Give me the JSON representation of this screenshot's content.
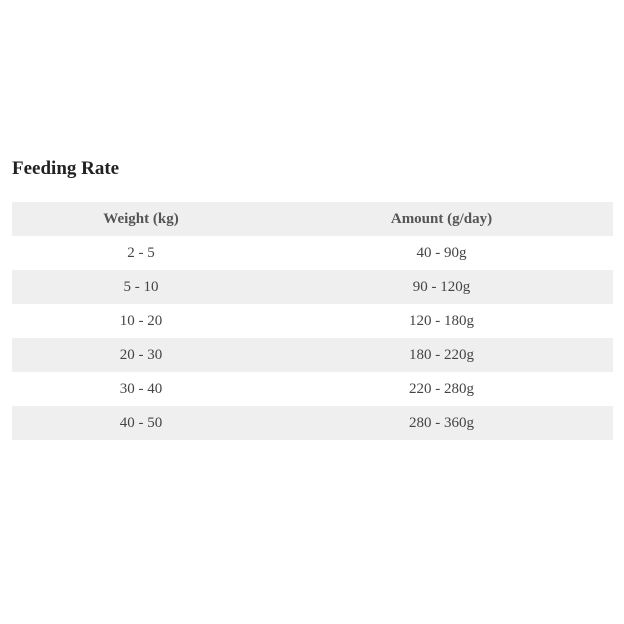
{
  "title": "Feeding Rate",
  "table": {
    "headers": [
      "Weight (kg)",
      "Amount (g/day)"
    ],
    "rows": [
      [
        "2 - 5",
        "40 - 90g"
      ],
      [
        "5 - 10",
        "90 - 120g"
      ],
      [
        "10 - 20",
        "120 - 180g"
      ],
      [
        "20 - 30",
        "180 - 220g"
      ],
      [
        "30 - 40",
        "220 - 280g"
      ],
      [
        "40 - 50",
        "280 - 360g"
      ]
    ]
  },
  "colors": {
    "stripe": "#efefef",
    "text": "#444444"
  }
}
